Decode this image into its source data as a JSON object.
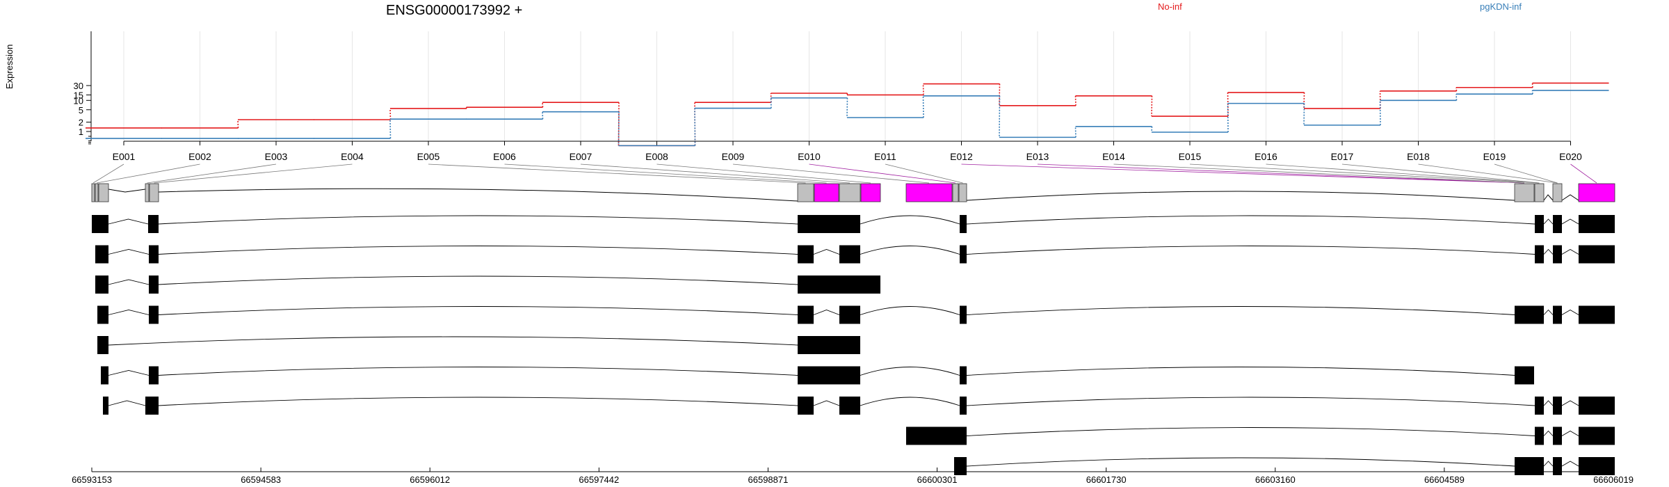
{
  "gene_title": "ENSG00000173992 +",
  "chart_data": {
    "type": "line",
    "ylabel": "Expression",
    "y_scale": "log",
    "y_ticks": [
      1,
      2,
      5,
      10,
      15,
      30
    ],
    "categories": [
      "E001",
      "E002",
      "E003",
      "E004",
      "E005",
      "E006",
      "E007",
      "E008",
      "E009",
      "E010",
      "E011",
      "E012",
      "E013",
      "E014",
      "E015",
      "E016",
      "E017",
      "E018",
      "E019",
      "E020"
    ],
    "series": [
      {
        "name": "No-inf",
        "color": "#e41a1c",
        "values": [
          1.3,
          1.3,
          2.4,
          2.4,
          5.5,
          6.0,
          8.6,
          0.35,
          8.6,
          17,
          15,
          34,
          6.8,
          14,
          3.1,
          18,
          5.5,
          20,
          26,
          36
        ]
      },
      {
        "name": "pgKDN-inf",
        "color": "#377eb8",
        "values": [
          0.6,
          0.6,
          0.6,
          0.6,
          2.5,
          2.5,
          4.3,
          0.35,
          5.6,
          12,
          2.8,
          14,
          0.65,
          1.45,
          0.95,
          8,
          1.6,
          10,
          16,
          21
        ]
      }
    ],
    "genomic_ticks": [
      "66593153",
      "66594583",
      "66596012",
      "66597442",
      "66598871",
      "66600301",
      "66601730",
      "66603160",
      "66604589",
      "66606019"
    ],
    "exon_colors": {
      "normal": "#c0c0c0",
      "significant": "#ff00ff",
      "transcript": "#000000"
    }
  }
}
